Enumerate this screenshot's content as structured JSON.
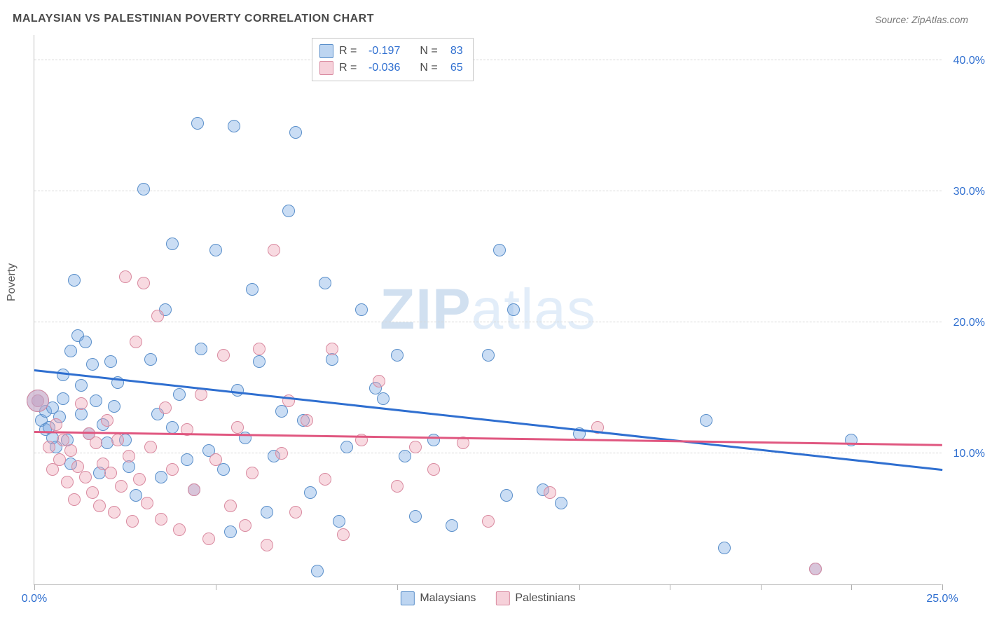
{
  "title": "MALAYSIAN VS PALESTINIAN POVERTY CORRELATION CHART",
  "source": "Source: ZipAtlas.com",
  "ylabel": "Poverty",
  "watermark_bold": "ZIP",
  "watermark_light": "atlas",
  "chart": {
    "type": "scatter",
    "background_color": "#ffffff",
    "grid_color": "#d8d8d8",
    "axis_color": "#c0c0c0",
    "text_color": "#4a4a4a",
    "value_color": "#2f6fd0",
    "title_fontsize": 16,
    "label_fontsize": 16,
    "tick_fontsize": 16,
    "xlim": [
      0,
      25
    ],
    "ylim": [
      0,
      42
    ],
    "xtick_positions": [
      0,
      5,
      10,
      15,
      17.5,
      20,
      22.5,
      25
    ],
    "xtick_labels": [
      "0.0%",
      "",
      "",
      "",
      "",
      "",
      "",
      "25.0%"
    ],
    "ytick_positions": [
      10,
      20,
      30,
      40
    ],
    "ytick_labels": [
      "10.0%",
      "20.0%",
      "30.0%",
      "40.0%"
    ],
    "marker_radius": 9,
    "large_marker_radius": 16,
    "series": [
      {
        "name": "Malaysians",
        "color_fill": "rgba(123,171,227,0.40)",
        "color_stroke": "#5a8fca",
        "trend_color": "#2f6fd0",
        "R": "-0.197",
        "N": "83",
        "trend": {
          "x0": 0,
          "y0": 16.3,
          "x1": 25,
          "y1": 8.7
        },
        "points": [
          [
            0.1,
            14.0
          ],
          [
            0.2,
            12.5
          ],
          [
            0.3,
            13.2
          ],
          [
            0.3,
            11.8
          ],
          [
            0.4,
            12.0
          ],
          [
            0.5,
            13.5
          ],
          [
            0.5,
            11.2
          ],
          [
            0.6,
            10.5
          ],
          [
            0.7,
            12.8
          ],
          [
            0.8,
            16.0
          ],
          [
            0.8,
            14.2
          ],
          [
            0.9,
            11.0
          ],
          [
            1.0,
            17.8
          ],
          [
            1.0,
            9.2
          ],
          [
            1.1,
            23.2
          ],
          [
            1.2,
            19.0
          ],
          [
            1.3,
            15.2
          ],
          [
            1.3,
            13.0
          ],
          [
            1.4,
            18.5
          ],
          [
            1.5,
            11.5
          ],
          [
            1.6,
            16.8
          ],
          [
            1.7,
            14.0
          ],
          [
            1.8,
            8.5
          ],
          [
            1.9,
            12.2
          ],
          [
            2.0,
            10.8
          ],
          [
            2.1,
            17.0
          ],
          [
            2.2,
            13.6
          ],
          [
            2.3,
            15.4
          ],
          [
            2.5,
            11.0
          ],
          [
            2.6,
            9.0
          ],
          [
            2.8,
            6.8
          ],
          [
            3.0,
            30.2
          ],
          [
            3.2,
            17.2
          ],
          [
            3.4,
            13.0
          ],
          [
            3.5,
            8.2
          ],
          [
            3.6,
            21.0
          ],
          [
            3.8,
            26.0
          ],
          [
            3.8,
            12.0
          ],
          [
            4.0,
            14.5
          ],
          [
            4.2,
            9.5
          ],
          [
            4.4,
            7.2
          ],
          [
            4.5,
            35.2
          ],
          [
            4.6,
            18.0
          ],
          [
            4.8,
            10.2
          ],
          [
            5.0,
            25.5
          ],
          [
            5.2,
            8.8
          ],
          [
            5.4,
            4.0
          ],
          [
            5.5,
            35.0
          ],
          [
            5.6,
            14.8
          ],
          [
            5.8,
            11.2
          ],
          [
            6.0,
            22.5
          ],
          [
            6.2,
            17.0
          ],
          [
            6.4,
            5.5
          ],
          [
            6.6,
            9.8
          ],
          [
            6.8,
            13.2
          ],
          [
            7.0,
            28.5
          ],
          [
            7.2,
            34.5
          ],
          [
            7.4,
            12.5
          ],
          [
            7.6,
            7.0
          ],
          [
            7.8,
            1.0
          ],
          [
            8.0,
            23.0
          ],
          [
            8.2,
            17.2
          ],
          [
            8.4,
            4.8
          ],
          [
            8.6,
            10.5
          ],
          [
            9.0,
            21.0
          ],
          [
            9.4,
            15.0
          ],
          [
            9.6,
            14.2
          ],
          [
            10.0,
            17.5
          ],
          [
            10.2,
            9.8
          ],
          [
            10.5,
            5.2
          ],
          [
            11.0,
            11.0
          ],
          [
            11.5,
            4.5
          ],
          [
            12.5,
            17.5
          ],
          [
            12.8,
            25.5
          ],
          [
            13.0,
            6.8
          ],
          [
            13.2,
            21.0
          ],
          [
            14.0,
            7.2
          ],
          [
            14.5,
            6.2
          ],
          [
            15.0,
            11.5
          ],
          [
            18.5,
            12.5
          ],
          [
            19.0,
            2.8
          ],
          [
            21.5,
            1.2
          ],
          [
            22.5,
            11.0
          ]
        ]
      },
      {
        "name": "Palestinians",
        "color_fill": "rgba(238,163,181,0.40)",
        "color_stroke": "#d98aa0",
        "trend_color": "#e05780",
        "R": "-0.036",
        "N": "65",
        "trend": {
          "x0": 0,
          "y0": 11.6,
          "x1": 25,
          "y1": 10.6
        },
        "points": [
          [
            0.1,
            14.0
          ],
          [
            0.4,
            10.5
          ],
          [
            0.5,
            8.8
          ],
          [
            0.6,
            12.2
          ],
          [
            0.7,
            9.5
          ],
          [
            0.8,
            11.0
          ],
          [
            0.9,
            7.8
          ],
          [
            1.0,
            10.2
          ],
          [
            1.1,
            6.5
          ],
          [
            1.2,
            9.0
          ],
          [
            1.3,
            13.8
          ],
          [
            1.4,
            8.2
          ],
          [
            1.5,
            11.5
          ],
          [
            1.6,
            7.0
          ],
          [
            1.7,
            10.8
          ],
          [
            1.8,
            6.0
          ],
          [
            1.9,
            9.2
          ],
          [
            2.0,
            12.5
          ],
          [
            2.1,
            8.5
          ],
          [
            2.2,
            5.5
          ],
          [
            2.3,
            11.0
          ],
          [
            2.4,
            7.5
          ],
          [
            2.5,
            23.5
          ],
          [
            2.6,
            9.8
          ],
          [
            2.7,
            4.8
          ],
          [
            2.8,
            18.5
          ],
          [
            2.9,
            8.0
          ],
          [
            3.0,
            23.0
          ],
          [
            3.1,
            6.2
          ],
          [
            3.2,
            10.5
          ],
          [
            3.4,
            20.5
          ],
          [
            3.5,
            5.0
          ],
          [
            3.6,
            13.5
          ],
          [
            3.8,
            8.8
          ],
          [
            4.0,
            4.2
          ],
          [
            4.2,
            11.8
          ],
          [
            4.4,
            7.2
          ],
          [
            4.6,
            14.5
          ],
          [
            4.8,
            3.5
          ],
          [
            5.0,
            9.5
          ],
          [
            5.2,
            17.5
          ],
          [
            5.4,
            6.0
          ],
          [
            5.6,
            12.0
          ],
          [
            5.8,
            4.5
          ],
          [
            6.0,
            8.5
          ],
          [
            6.2,
            18.0
          ],
          [
            6.4,
            3.0
          ],
          [
            6.6,
            25.5
          ],
          [
            6.8,
            10.0
          ],
          [
            7.0,
            14.0
          ],
          [
            7.2,
            5.5
          ],
          [
            7.5,
            12.5
          ],
          [
            8.0,
            8.0
          ],
          [
            8.2,
            18.0
          ],
          [
            8.5,
            3.8
          ],
          [
            9.0,
            11.0
          ],
          [
            9.5,
            15.5
          ],
          [
            10.0,
            7.5
          ],
          [
            10.5,
            10.5
          ],
          [
            11.0,
            8.8
          ],
          [
            11.8,
            10.8
          ],
          [
            12.5,
            4.8
          ],
          [
            14.2,
            7.0
          ],
          [
            15.5,
            12.0
          ],
          [
            21.5,
            1.2
          ]
        ]
      }
    ],
    "large_points": [
      {
        "series": 0,
        "x": 0.1,
        "y": 14.0
      },
      {
        "series": 1,
        "x": 0.1,
        "y": 14.0
      }
    ]
  },
  "legend_top": {
    "R_label": "R =",
    "N_label": "N ="
  },
  "legend_bottom_labels": [
    "Malaysians",
    "Palestinians"
  ]
}
